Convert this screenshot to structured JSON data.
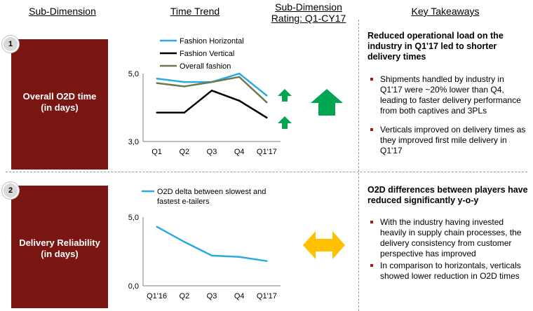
{
  "headers": {
    "sub_dimension": "Sub-Dimension",
    "time_trend": "Time Trend",
    "rating_line1": "Sub-Dimension",
    "rating_line2": "Rating: Q1-CY17",
    "key_takeaways": "Key Takeaways"
  },
  "rows": [
    {
      "number": "1",
      "label_line1": "Overall O2D time",
      "label_line2": "(in days)"
    },
    {
      "number": "2",
      "label_line1": "Delivery Reliability",
      "label_line2": "(in days)"
    }
  ],
  "colors": {
    "panel": "#7a1612",
    "green_arrow": "#00a651",
    "yellow_arrow": "#ffc000"
  },
  "icons": [
    "up-arrow-icon",
    "double-arrow-icon"
  ],
  "chart_data": [
    {
      "type": "line",
      "categories": [
        "Q1",
        "Q2",
        "Q3",
        "Q4",
        "Q1'17"
      ],
      "ylim": [
        3.0,
        5.0
      ],
      "yticks": [
        "5,0",
        "3,0"
      ],
      "series": [
        {
          "name": "Fashion Horizontal",
          "color": "#29abe2",
          "values": [
            4.85,
            4.75,
            4.75,
            5.0,
            4.35
          ]
        },
        {
          "name": "Fashion Vertical",
          "color": "#000000",
          "values": [
            3.85,
            3.85,
            4.5,
            4.2,
            3.7
          ]
        },
        {
          "name": "Overall fashion",
          "color": "#6b7a52",
          "values": [
            4.72,
            4.62,
            4.75,
            4.9,
            4.15
          ]
        }
      ],
      "legend": "top-left"
    },
    {
      "type": "line",
      "categories": [
        "Q1'16",
        "Q2",
        "Q3",
        "Q4",
        "Q1'17"
      ],
      "ylim": [
        0.0,
        5.0
      ],
      "yticks": [
        "5,0",
        "0,0"
      ],
      "series": [
        {
          "name": "O2D delta between slowest and fastest e-tailers",
          "color": "#29abe2",
          "values": [
            4.3,
            3.2,
            2.2,
            2.1,
            1.8
          ]
        }
      ],
      "legend": "top-left"
    }
  ],
  "chart1_legend": [
    "Fashion Horizontal",
    "Fashion Vertical",
    "Overall fashion"
  ],
  "chart2_legend_line1": "O2D delta between slowest and",
  "chart2_legend_line2": "fastest e-tailers",
  "takeaways": {
    "row1": {
      "heading": "Reduced operational load on the industry in Q1'17  led to shorter delivery times",
      "bullets": [
        "Shipments handled by industry in Q1'17 were ~20% lower than Q4, leading to faster delivery performance from both captives and 3PLs",
        "Verticals improved on delivery times as they improved first mile delivery in Q1'17"
      ]
    },
    "row2": {
      "heading": "O2D differences between players have reduced significantly y-o-y",
      "bullets": [
        "With the industry having invested heavily in supply chain processes, the delivery consistency from customer perspective has improved",
        "In comparison to horizontals, verticals showed lower reduction in O2D times"
      ]
    }
  }
}
